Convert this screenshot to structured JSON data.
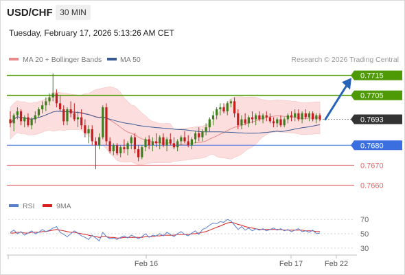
{
  "header": {
    "pair": "USD/CHF",
    "timeframe": "30 MIN",
    "datetime": "Tuesday, February 17, 2026 5:13:26 AM CET"
  },
  "legend": {
    "ma20_label": "MA 20 + Bollinger Bands",
    "ma50_label": "MA 50",
    "credit": "Research © 2026 Trading Central"
  },
  "colors": {
    "up": "#3f7d1f",
    "down": "#c31d1d",
    "ma20": "#e88b8b",
    "ma50": "#3a5a93",
    "band_fill": "#fcdede",
    "resistance": "#4e9a06",
    "pivot": "#333333",
    "support_blue": "#3b6fe0",
    "support_red": "#e86565",
    "arrow": "#2563b8",
    "rsi": "#5b7fcf",
    "rsi_ma": "#d42020"
  },
  "chart_data": [
    {
      "type": "candlestick",
      "pair": "USD/CHF",
      "timeframe": "30 MIN",
      "ylim": [
        0.7656,
        0.7719
      ],
      "x_ticks": [
        "Feb 16",
        "Feb 17",
        "Feb 22"
      ],
      "levels": [
        {
          "value": 0.7715,
          "label": "0.7715",
          "style": "resistance"
        },
        {
          "value": 0.7705,
          "label": "0.7705",
          "style": "resistance"
        },
        {
          "value": 0.7693,
          "label": "0.7693",
          "style": "pivot"
        },
        {
          "value": 0.768,
          "label": "0.7680",
          "style": "support_blue"
        },
        {
          "value": 0.767,
          "label": "0.7670",
          "style": "support_red"
        },
        {
          "value": 0.766,
          "label": "0.7660",
          "style": "support_red"
        }
      ],
      "forecast_target": 0.7712,
      "candles": [
        [
          0.7693,
          0.7697,
          0.7689,
          0.7691
        ],
        [
          0.7691,
          0.7696,
          0.7687,
          0.7695
        ],
        [
          0.7695,
          0.7699,
          0.7693,
          0.7697
        ],
        [
          0.7697,
          0.7698,
          0.769,
          0.7692
        ],
        [
          0.7692,
          0.7695,
          0.7689,
          0.7694
        ],
        [
          0.7694,
          0.7696,
          0.7689,
          0.769
        ],
        [
          0.769,
          0.7694,
          0.7688,
          0.7693
        ],
        [
          0.7693,
          0.7697,
          0.7691,
          0.7695
        ],
        [
          0.7695,
          0.7699,
          0.7694,
          0.7698
        ],
        [
          0.7698,
          0.7702,
          0.7696,
          0.77
        ],
        [
          0.77,
          0.7704,
          0.7697,
          0.7702
        ],
        [
          0.7702,
          0.7706,
          0.77,
          0.7704
        ],
        [
          0.7704,
          0.7716,
          0.7702,
          0.7706
        ],
        [
          0.7706,
          0.7708,
          0.7699,
          0.7701
        ],
        [
          0.7701,
          0.7705,
          0.7697,
          0.7698
        ],
        [
          0.7698,
          0.77,
          0.769,
          0.7692
        ],
        [
          0.7692,
          0.7699,
          0.769,
          0.7698
        ],
        [
          0.7698,
          0.7702,
          0.7694,
          0.7696
        ],
        [
          0.7696,
          0.7701,
          0.7692,
          0.7693
        ],
        [
          0.7693,
          0.7697,
          0.7689,
          0.7694
        ],
        [
          0.7694,
          0.7698,
          0.7688,
          0.769
        ],
        [
          0.769,
          0.7693,
          0.7684,
          0.7686
        ],
        [
          0.7686,
          0.769,
          0.7681,
          0.7688
        ],
        [
          0.7688,
          0.769,
          0.768,
          0.7682
        ],
        [
          0.7682,
          0.7684,
          0.7668,
          0.768
        ],
        [
          0.768,
          0.7686,
          0.7678,
          0.7684
        ],
        [
          0.7684,
          0.77,
          0.7683,
          0.7699
        ],
        [
          0.7699,
          0.7701,
          0.768,
          0.7682
        ],
        [
          0.7682,
          0.7684,
          0.7676,
          0.7677
        ],
        [
          0.7677,
          0.7681,
          0.7675,
          0.768
        ],
        [
          0.768,
          0.7681,
          0.7675,
          0.7676
        ],
        [
          0.7676,
          0.768,
          0.7674,
          0.7679
        ],
        [
          0.7679,
          0.7683,
          0.7676,
          0.7678
        ],
        [
          0.7678,
          0.7682,
          0.7675,
          0.7681
        ],
        [
          0.7681,
          0.7685,
          0.7678,
          0.7684
        ],
        [
          0.7684,
          0.7686,
          0.7676,
          0.7678
        ],
        [
          0.7678,
          0.768,
          0.7672,
          0.7674
        ],
        [
          0.7674,
          0.768,
          0.7673,
          0.7679
        ],
        [
          0.7679,
          0.7684,
          0.7677,
          0.7683
        ],
        [
          0.7683,
          0.7685,
          0.7678,
          0.768
        ],
        [
          0.768,
          0.7684,
          0.7677,
          0.7682
        ],
        [
          0.7682,
          0.7686,
          0.7679,
          0.7681
        ],
        [
          0.7681,
          0.7685,
          0.7678,
          0.7684
        ],
        [
          0.7684,
          0.7686,
          0.7679,
          0.768
        ],
        [
          0.768,
          0.7684,
          0.7677,
          0.7683
        ],
        [
          0.7683,
          0.7686,
          0.768,
          0.7681
        ],
        [
          0.7681,
          0.7684,
          0.7678,
          0.7679
        ],
        [
          0.7679,
          0.7683,
          0.7677,
          0.7682
        ],
        [
          0.7682,
          0.7685,
          0.768,
          0.7684
        ],
        [
          0.7684,
          0.7687,
          0.7681,
          0.7682
        ],
        [
          0.7682,
          0.7685,
          0.7679,
          0.768
        ],
        [
          0.768,
          0.7684,
          0.7678,
          0.7683
        ],
        [
          0.7683,
          0.7687,
          0.7681,
          0.7686
        ],
        [
          0.7686,
          0.7689,
          0.7682,
          0.7684
        ],
        [
          0.7684,
          0.7688,
          0.7682,
          0.7687
        ],
        [
          0.7687,
          0.7691,
          0.7685,
          0.7689
        ],
        [
          0.7689,
          0.7694,
          0.7687,
          0.7693
        ],
        [
          0.7693,
          0.7697,
          0.769,
          0.7695
        ],
        [
          0.7695,
          0.7699,
          0.7693,
          0.7698
        ],
        [
          0.7698,
          0.7701,
          0.7695,
          0.7699
        ],
        [
          0.7699,
          0.7701,
          0.7696,
          0.7697
        ],
        [
          0.7697,
          0.7702,
          0.7695,
          0.7701
        ],
        [
          0.7701,
          0.7703,
          0.7699,
          0.7702
        ],
        [
          0.7702,
          0.7704,
          0.7694,
          0.7696
        ],
        [
          0.7696,
          0.7698,
          0.7688,
          0.769
        ],
        [
          0.769,
          0.7695,
          0.7688,
          0.7693
        ],
        [
          0.7693,
          0.7696,
          0.769,
          0.7691
        ],
        [
          0.7691,
          0.7695,
          0.7689,
          0.7694
        ],
        [
          0.7694,
          0.7697,
          0.7691,
          0.7693
        ],
        [
          0.7693,
          0.7696,
          0.769,
          0.7695
        ],
        [
          0.7695,
          0.7697,
          0.7692,
          0.7693
        ],
        [
          0.7693,
          0.7696,
          0.7691,
          0.7695
        ],
        [
          0.7695,
          0.7697,
          0.7692,
          0.7694
        ],
        [
          0.7694,
          0.7696,
          0.7691,
          0.7692
        ],
        [
          0.7692,
          0.7694,
          0.7689,
          0.7691
        ],
        [
          0.7691,
          0.7694,
          0.7689,
          0.7693
        ],
        [
          0.7693,
          0.7695,
          0.7689,
          0.769
        ],
        [
          0.769,
          0.7694,
          0.7689,
          0.7693
        ],
        [
          0.7693,
          0.7696,
          0.7691,
          0.7695
        ],
        [
          0.7695,
          0.7697,
          0.7692,
          0.7694
        ],
        [
          0.7694,
          0.7698,
          0.7692,
          0.7696
        ],
        [
          0.7696,
          0.7698,
          0.7692,
          0.7693
        ],
        [
          0.7693,
          0.7697,
          0.7691,
          0.7696
        ],
        [
          0.7696,
          0.7698,
          0.7693,
          0.7694
        ],
        [
          0.7694,
          0.7697,
          0.7692,
          0.7696
        ],
        [
          0.7696,
          0.7697,
          0.7692,
          0.7693
        ],
        [
          0.7693,
          0.7696,
          0.7691,
          0.7695
        ],
        [
          0.7695,
          0.7696,
          0.7692,
          0.7693
        ]
      ]
    },
    {
      "type": "line",
      "legend": [
        "RSI",
        "9MA"
      ],
      "y_ticks": [
        70,
        50,
        30
      ],
      "ylim": [
        25,
        75
      ],
      "x_ticks": [
        "Feb 16",
        "Feb 17",
        "Feb 22"
      ],
      "series": [
        {
          "name": "RSI",
          "values": [
            52,
            55,
            50,
            53,
            48,
            51,
            54,
            50,
            52,
            56,
            53,
            55,
            58,
            60,
            52,
            49,
            46,
            50,
            54,
            51,
            47,
            45,
            42,
            48,
            44,
            40,
            52,
            46,
            43,
            44,
            42,
            45,
            47,
            44,
            48,
            46,
            43,
            46,
            50,
            45,
            48,
            47,
            50,
            47,
            52,
            49,
            46,
            50,
            53,
            49,
            47,
            51,
            54,
            49,
            56,
            58,
            62,
            65,
            64,
            67,
            66,
            70,
            68,
            62,
            56,
            60,
            55,
            58,
            54,
            57,
            55,
            57,
            54,
            56,
            58,
            55,
            57,
            54,
            56,
            53,
            55,
            57,
            53,
            54,
            52,
            55,
            50,
            51
          ]
        },
        {
          "name": "9MA",
          "values": [
            51,
            51,
            52,
            52,
            51,
            51,
            52,
            52,
            52,
            53,
            53,
            54,
            55,
            56,
            55,
            54,
            53,
            52,
            52,
            51,
            50,
            49,
            48,
            47,
            46,
            45,
            46,
            46,
            45,
            45,
            44,
            44,
            45,
            45,
            45,
            45,
            45,
            45,
            46,
            46,
            46,
            47,
            47,
            48,
            48,
            48,
            48,
            49,
            49,
            49,
            49,
            50,
            50,
            51,
            52,
            53,
            55,
            57,
            59,
            61,
            63,
            65,
            66,
            65,
            63,
            62,
            60,
            59,
            58,
            57,
            56,
            56,
            56,
            56,
            56,
            56,
            56,
            55,
            55,
            55,
            55,
            55,
            55,
            54,
            54,
            54,
            53,
            53
          ]
        }
      ]
    }
  ]
}
